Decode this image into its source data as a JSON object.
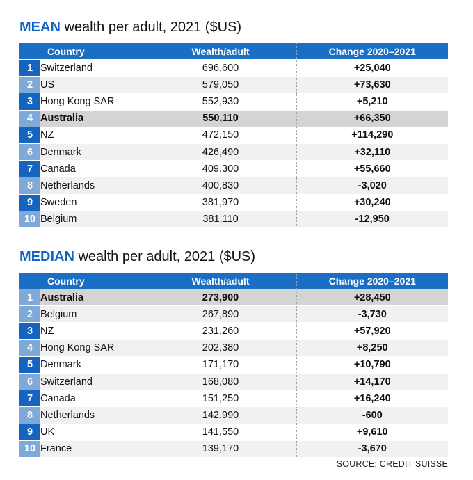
{
  "source": "SOURCE: CREDIT SUISSE",
  "colors": {
    "header": "#1a6fc4",
    "title_keyword": "#1565c0",
    "rank_dark": "#1565c0",
    "rank_light": "#7fa9d6",
    "highlight_row": "#d4d4d4"
  },
  "chart_data": [
    {
      "type": "table",
      "title_keyword": "MEAN",
      "title_rest": " wealth per adult, 2021 ($US)",
      "columns": [
        "Country",
        "Wealth/adult",
        "Change 2020–2021"
      ],
      "highlight": "Australia",
      "rows": [
        {
          "rank": "1",
          "country": "Switzerland",
          "wealth": "696,600",
          "change": "+25,040"
        },
        {
          "rank": "2",
          "country": "US",
          "wealth": "579,050",
          "change": "+73,630"
        },
        {
          "rank": "3",
          "country": "Hong Kong SAR",
          "wealth": "552,930",
          "change": "+5,210"
        },
        {
          "rank": "4",
          "country": "Australia",
          "wealth": "550,110",
          "change": "+66,350"
        },
        {
          "rank": "5",
          "country": "NZ",
          "wealth": "472,150",
          "change": "+114,290"
        },
        {
          "rank": "6",
          "country": "Denmark",
          "wealth": "426,490",
          "change": "+32,110"
        },
        {
          "rank": "7",
          "country": "Canada",
          "wealth": "409,300",
          "change": "+55,660"
        },
        {
          "rank": "8",
          "country": "Netherlands",
          "wealth": "400,830",
          "change": "-3,020"
        },
        {
          "rank": "9",
          "country": "Sweden",
          "wealth": "381,970",
          "change": "+30,240"
        },
        {
          "rank": "10",
          "country": "Belgium",
          "wealth": "381,110",
          "change": "-12,950"
        }
      ]
    },
    {
      "type": "table",
      "title_keyword": "MEDIAN",
      "title_rest": " wealth per adult, 2021 ($US)",
      "columns": [
        "Country",
        "Wealth/adult",
        "Change 2020–2021"
      ],
      "highlight": "Australia",
      "rows": [
        {
          "rank": "1",
          "country": "Australia",
          "wealth": "273,900",
          "change": "+28,450"
        },
        {
          "rank": "2",
          "country": "Belgium",
          "wealth": "267,890",
          "change": "-3,730"
        },
        {
          "rank": "3",
          "country": "NZ",
          "wealth": "231,260",
          "change": "+57,920"
        },
        {
          "rank": "4",
          "country": "Hong Kong SAR",
          "wealth": "202,380",
          "change": "+8,250"
        },
        {
          "rank": "5",
          "country": "Denmark",
          "wealth": "171,170",
          "change": "+10,790"
        },
        {
          "rank": "6",
          "country": "Switzerland",
          "wealth": "168,080",
          "change": "+14,170"
        },
        {
          "rank": "7",
          "country": "Canada",
          "wealth": "151,250",
          "change": "+16,240"
        },
        {
          "rank": "8",
          "country": "Netherlands",
          "wealth": "142,990",
          "change": "-600"
        },
        {
          "rank": "9",
          "country": "UK",
          "wealth": "141,550",
          "change": "+9,610"
        },
        {
          "rank": "10",
          "country": "France",
          "wealth": "139,170",
          "change": "-3,670"
        }
      ]
    }
  ]
}
